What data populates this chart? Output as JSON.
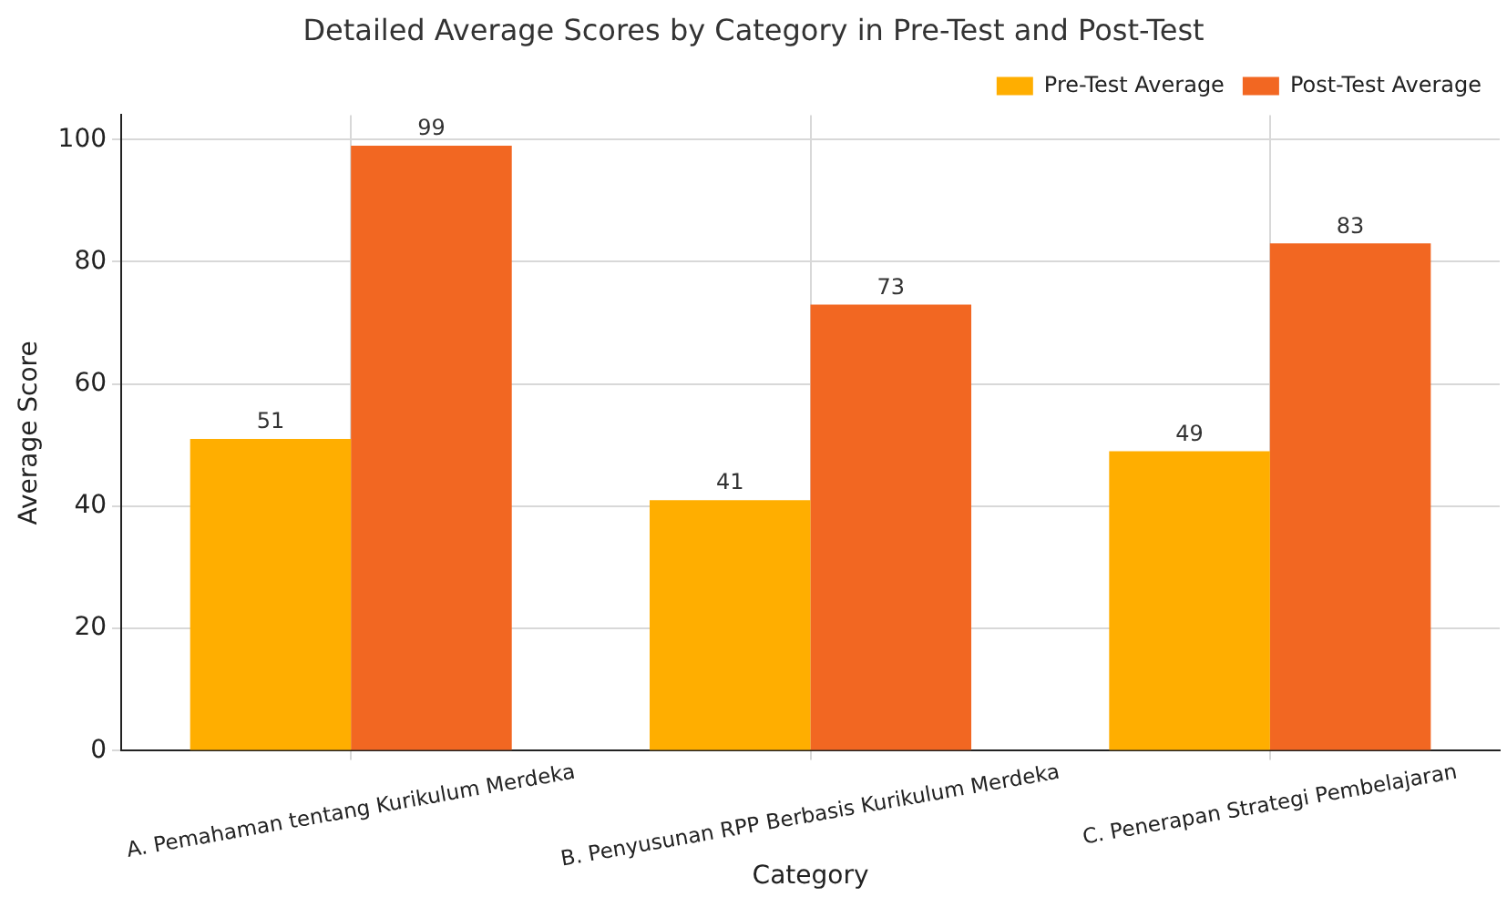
{
  "chart_data": {
    "type": "bar",
    "title": "Detailed Average Scores by Category in Pre-Test and Post-Test",
    "xlabel": "Category",
    "ylabel": "Average Score",
    "categories": [
      "A. Pemahaman tentang Kurikulum Merdeka",
      "B. Penyusunan RPP Berbasis Kurikulum Merdeka",
      "C. Penerapan Strategi Pembelajaran"
    ],
    "series": [
      {
        "name": "Pre-Test Average",
        "color": "#ffae00",
        "values": [
          51,
          41,
          49
        ]
      },
      {
        "name": "Post-Test Average",
        "color": "#f26722",
        "values": [
          99,
          73,
          83
        ]
      }
    ],
    "ylim": [
      0,
      104
    ],
    "yticks": [
      0,
      20,
      40,
      60,
      80,
      100
    ],
    "grid": true,
    "legend": "top right",
    "data_labels": true
  }
}
